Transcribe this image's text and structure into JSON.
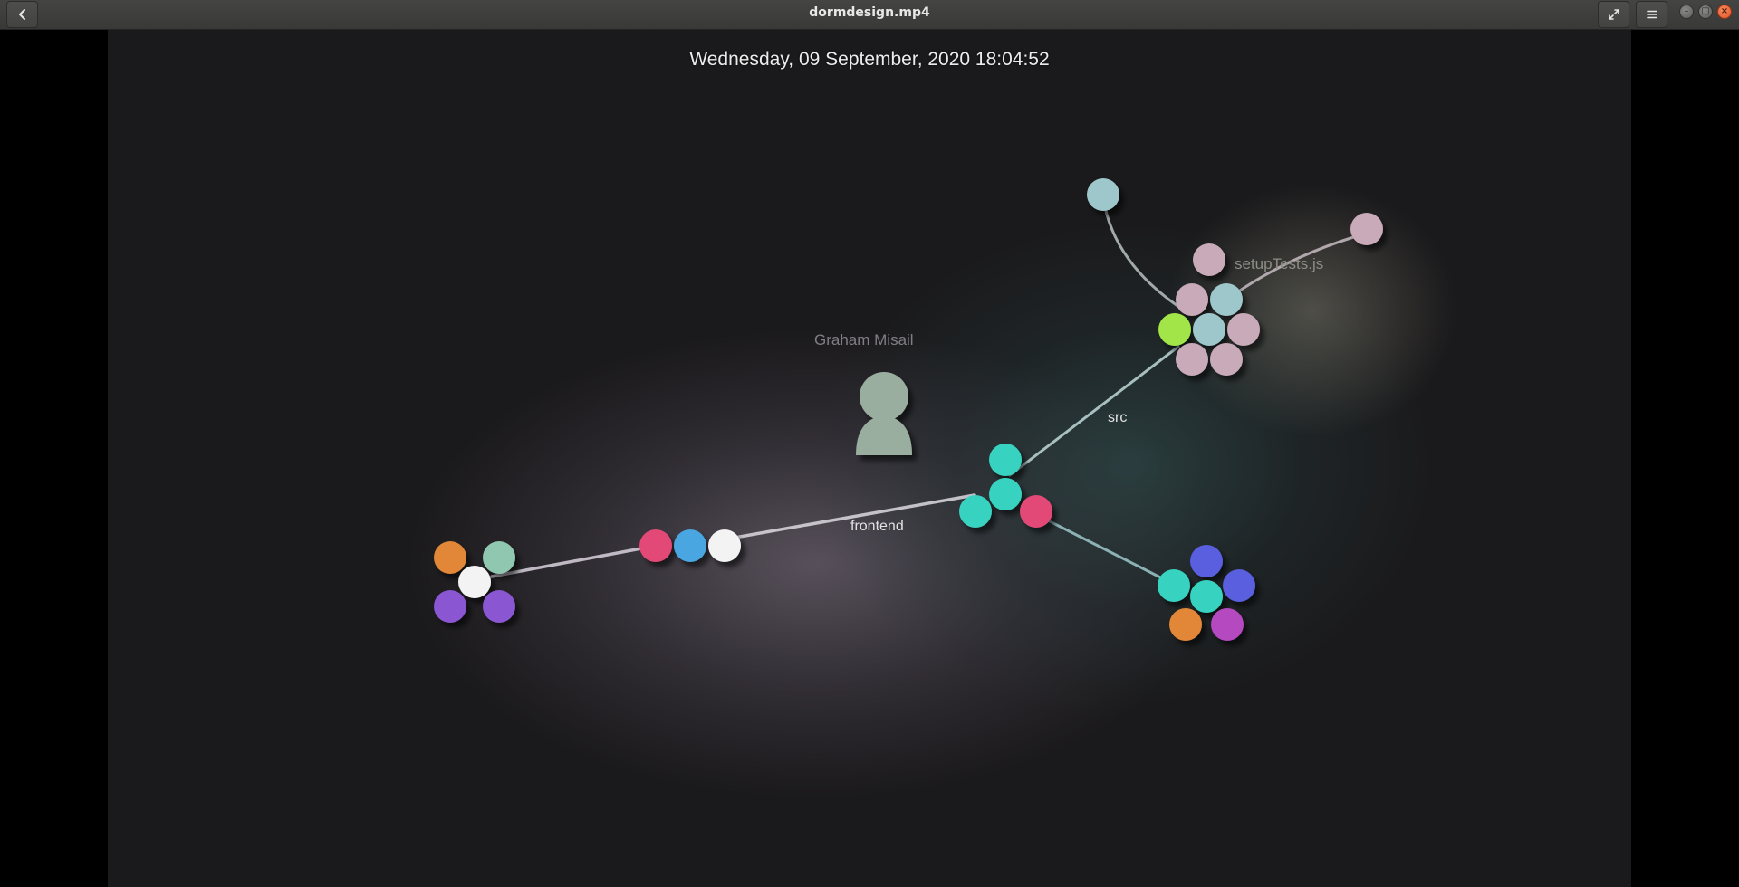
{
  "window": {
    "title": "dormdesign.mp4",
    "back_icon": "chevron-left-icon",
    "fullscreen_icon": "expand-icon",
    "menu_icon": "hamburger-menu-icon",
    "minimize_glyph": "–",
    "maximize_glyph": "□",
    "close_glyph": "×"
  },
  "video": {
    "timestamp": "Wednesday, 09 September, 2020 18:04:52",
    "user_label": "Graham Misail",
    "edge_labels": {
      "frontend": "frontend",
      "src": "src",
      "setup": "setupTests.js"
    },
    "colors": {
      "background": "#1a191b",
      "teal": "#37d3c0",
      "pink": "#e34976",
      "blue": "#4aa6e0",
      "white": "#f3f3f3",
      "orange": "#e28637",
      "sage": "#8fc7b0",
      "purple": "#8a57d2",
      "light_blue": "#9ec7cb",
      "mauve": "#c8aab8",
      "lime": "#a2e548",
      "indigo": "#5a5fe0",
      "magenta": "#b548c0",
      "avatar": "#9aaea0"
    }
  }
}
